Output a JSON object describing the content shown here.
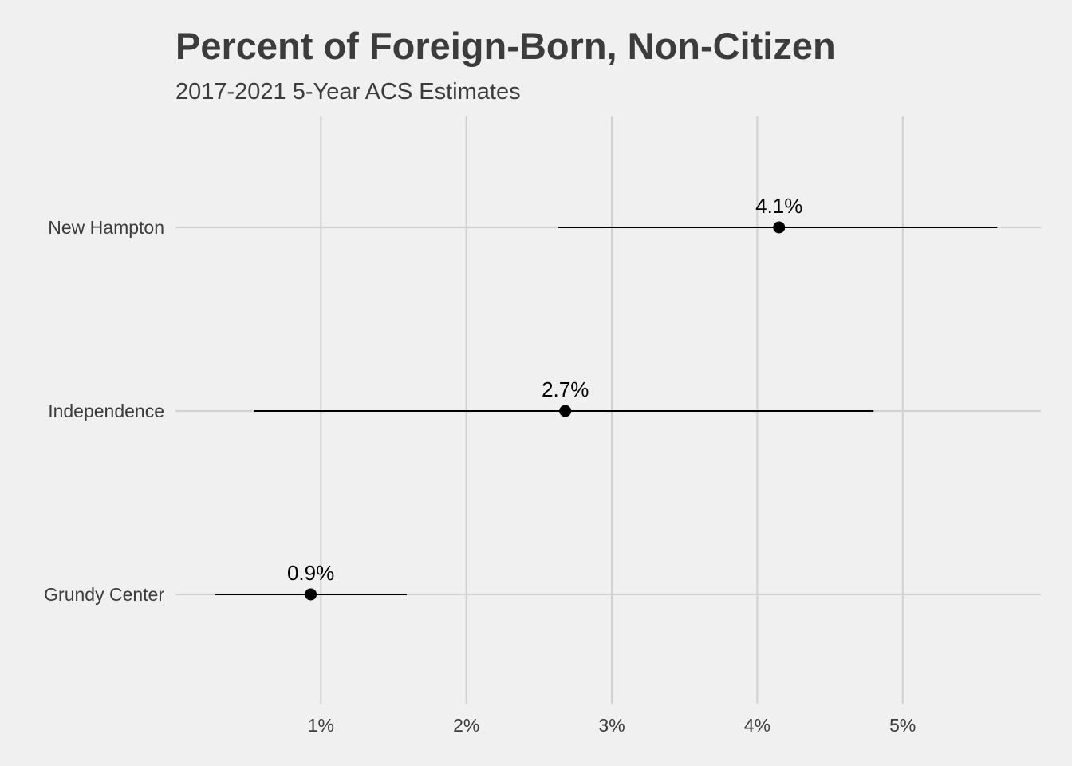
{
  "chart_data": {
    "type": "dot-errorbar",
    "title": "Percent of Foreign-Born, Non-Citizen",
    "subtitle": "2017-2021 5-Year ACS Estimates",
    "xlabel": "",
    "ylabel": "",
    "x_ticks": [
      1,
      2,
      3,
      4,
      5
    ],
    "x_tick_labels": [
      "1%",
      "2%",
      "3%",
      "4%",
      "5%"
    ],
    "xlim": [
      0,
      5.95
    ],
    "grid": true,
    "legend": "none",
    "categories": [
      "New Hampton",
      "Independence",
      "Grundy Center"
    ],
    "estimates": [
      4.15,
      2.68,
      0.93
    ],
    "lower": [
      2.63,
      0.54,
      0.27
    ],
    "upper": [
      5.65,
      4.8,
      1.59
    ],
    "data_labels": [
      "4.1%",
      "2.7%",
      "0.9%"
    ],
    "colors": {
      "background": "#f0f0f0",
      "grid": "#d2d2d2",
      "text": "#3c3c3c",
      "marks": "#000000"
    }
  }
}
